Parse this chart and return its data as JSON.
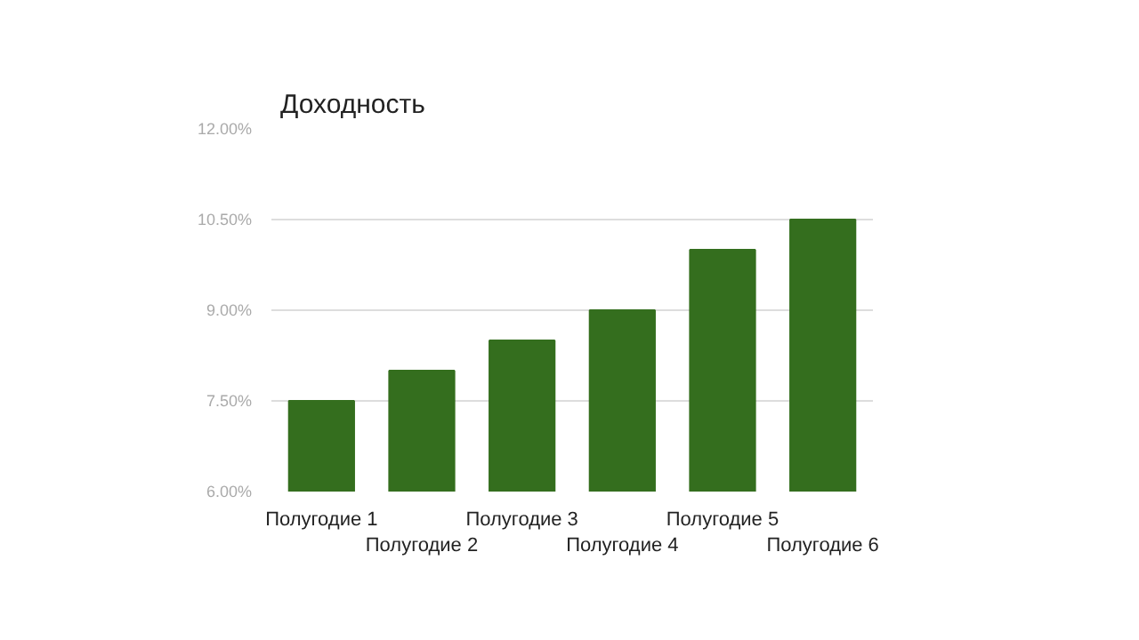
{
  "chart_data": {
    "type": "bar",
    "title": "Доходность",
    "categories": [
      "Полугодие 1",
      "Полугодие 2",
      "Полугодие 3",
      "Полугодие 4",
      "Полугодие 5",
      "Полугодие 6"
    ],
    "values": [
      7.5,
      8.0,
      8.5,
      9.0,
      10.0,
      10.5
    ],
    "color": "#346e1e",
    "ylim": [
      6,
      12
    ],
    "yticks": [
      {
        "value": 6,
        "label": "6.00%"
      },
      {
        "value": 7.5,
        "label": "7.50%"
      },
      {
        "value": 9,
        "label": "9.00%"
      },
      {
        "value": 10.5,
        "label": "10.50%"
      },
      {
        "value": 12,
        "label": "12.00%"
      }
    ],
    "grid": "y"
  }
}
